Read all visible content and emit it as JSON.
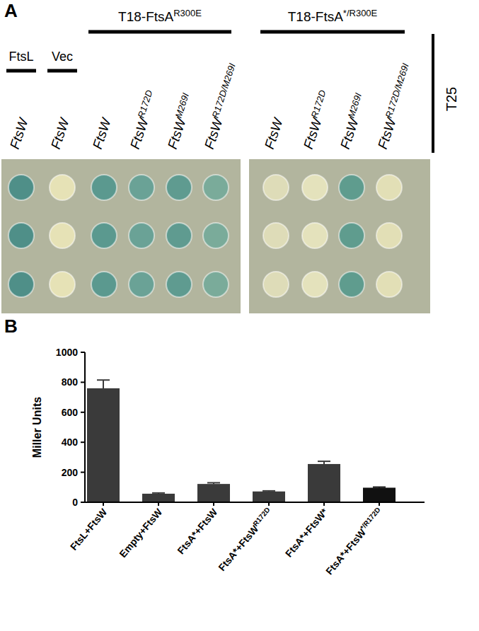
{
  "chart_data": [
    {
      "type": "spot_assay",
      "panel": "A",
      "side_label": "T25",
      "groups": [
        {
          "label": "FtsL",
          "span": [
            0,
            0
          ]
        },
        {
          "label": "Vec",
          "span": [
            1,
            1
          ]
        },
        {
          "label": "T18-FtsAR300E",
          "span": [
            2,
            5
          ]
        },
        {
          "label": "T18-FtsA*/R300E",
          "span": [
            6,
            9
          ]
        }
      ],
      "columns": [
        {
          "label": "FtsW",
          "color": "#4f8f88"
        },
        {
          "label": "FtsW",
          "color": "#e6e2b6"
        },
        {
          "label": "FtsW",
          "color": "#5b998f"
        },
        {
          "label": "FtsWR172D",
          "color": "#6aa296"
        },
        {
          "label": "FtsWM269I",
          "color": "#5f9b90"
        },
        {
          "label": "FtsWR172D/M269I",
          "color": "#7aab9a"
        },
        {
          "label": "FtsW",
          "color": "#dedcb8"
        },
        {
          "label": "FtsWR172D",
          "color": "#e4e2bc"
        },
        {
          "label": "FtsWM269I",
          "color": "#5f9c8e"
        },
        {
          "label": "FtsWR172D/M269I",
          "color": "#e2dfb6"
        }
      ]
    },
    {
      "type": "bar",
      "panel": "B",
      "ylabel": "Miller Units",
      "categories": [
        "FtsL+FtsW",
        "Empty+FtsW",
        "FtsA*+FtsW",
        "FtsA*+FtsWR172D",
        "FtsA*+FtsW*",
        "FtsA*+FtsW*/R172D"
      ],
      "values": [
        760,
        57,
        122,
        72,
        255,
        97
      ],
      "errors": [
        55,
        5,
        8,
        4,
        18,
        4
      ],
      "colors": [
        "#3a3a3a",
        "#3a3a3a",
        "#3a3a3a",
        "#3a3a3a",
        "#3a3a3a",
        "#111111"
      ],
      "ylim": [
        0,
        1000
      ],
      "yticks": [
        0,
        200,
        400,
        600,
        800,
        1000
      ]
    }
  ]
}
